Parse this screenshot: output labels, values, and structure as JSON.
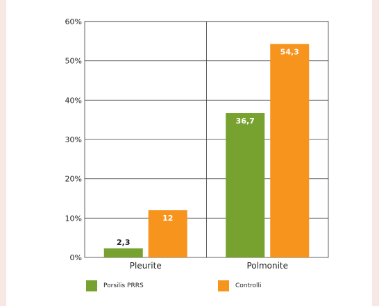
{
  "chart_data": {
    "type": "bar",
    "categories": [
      "Pleurite",
      "Polmonite"
    ],
    "series": [
      {
        "name": "Porsilis PRRS",
        "values": [
          2.3,
          36.7
        ],
        "labels": [
          "2,3",
          "36,7"
        ],
        "color": "#77a22f"
      },
      {
        "name": "Controlli",
        "values": [
          12,
          54.3
        ],
        "labels": [
          "12",
          "54,3"
        ],
        "color": "#f7941d"
      }
    ],
    "ylim": [
      0,
      60
    ],
    "yticks": [
      0,
      10,
      20,
      30,
      40,
      50,
      60
    ],
    "ytick_labels": [
      "0%",
      "10%",
      "20%",
      "30%",
      "40%",
      "50%",
      "60%"
    ],
    "grid": true,
    "legend_position": "bottom"
  }
}
